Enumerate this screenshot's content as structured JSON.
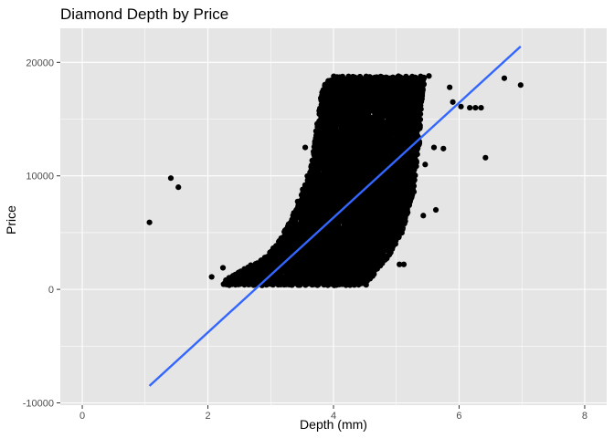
{
  "chart_data": {
    "type": "scatter",
    "title": "Diamond Depth by Price",
    "xlabel": "Depth (mm)",
    "ylabel": "Price",
    "xlim": [
      -0.35,
      8.35
    ],
    "ylim": [
      -10200,
      23000
    ],
    "x_ticks": [
      0,
      2,
      4,
      6,
      8
    ],
    "y_ticks": [
      -10000,
      0,
      10000,
      20000
    ],
    "x_tick_labels": [
      "0",
      "2",
      "4",
      "6",
      "8"
    ],
    "y_tick_labels": [
      "-10000",
      "0",
      "10000",
      "20000"
    ],
    "grid": true,
    "panel_background": "#e5e5e5",
    "grid_color": "#ffffff",
    "point_color": "#000000",
    "trend_color": "#3366ff",
    "trend_line": {
      "x": [
        1.07,
        6.98
      ],
      "y": [
        -8500,
        21400
      ]
    },
    "outlier_points": [
      {
        "x": 1.07,
        "y": 5900
      },
      {
        "x": 1.41,
        "y": 9800
      },
      {
        "x": 1.53,
        "y": 9000
      },
      {
        "x": 2.06,
        "y": 1100
      },
      {
        "x": 2.24,
        "y": 1900
      },
      {
        "x": 5.12,
        "y": 2200
      },
      {
        "x": 5.05,
        "y": 2200
      },
      {
        "x": 5.52,
        "y": 18800
      },
      {
        "x": 5.6,
        "y": 12500
      },
      {
        "x": 5.85,
        "y": 17800
      },
      {
        "x": 5.9,
        "y": 16500
      },
      {
        "x": 6.03,
        "y": 16100
      },
      {
        "x": 6.17,
        "y": 16000
      },
      {
        "x": 6.26,
        "y": 16000
      },
      {
        "x": 6.35,
        "y": 16000
      },
      {
        "x": 6.42,
        "y": 11600
      },
      {
        "x": 6.72,
        "y": 18600
      },
      {
        "x": 6.98,
        "y": 18000
      },
      {
        "x": 5.46,
        "y": 11000
      },
      {
        "x": 5.75,
        "y": 12400
      },
      {
        "x": 4.52,
        "y": 400
      },
      {
        "x": 4.38,
        "y": 1000
      },
      {
        "x": 2.35,
        "y": 700
      },
      {
        "x": 2.4,
        "y": 1200
      },
      {
        "x": 3.92,
        "y": 7600
      },
      {
        "x": 4.47,
        "y": 15000
      },
      {
        "x": 4.27,
        "y": 14400
      },
      {
        "x": 3.55,
        "y": 12500
      },
      {
        "x": 5.28,
        "y": 8600
      },
      {
        "x": 5.43,
        "y": 6500
      },
      {
        "x": 5.63,
        "y": 7000
      }
    ],
    "dense_band": [
      {
        "y": 400,
        "x_min": 2.25,
        "x_max": 4.45
      },
      {
        "y": 1000,
        "x_min": 2.3,
        "x_max": 4.6
      },
      {
        "y": 2000,
        "x_min": 2.65,
        "x_max": 4.75
      },
      {
        "y": 3000,
        "x_min": 2.95,
        "x_max": 4.9
      },
      {
        "y": 4000,
        "x_min": 3.1,
        "x_max": 5.0
      },
      {
        "y": 5000,
        "x_min": 3.2,
        "x_max": 5.1
      },
      {
        "y": 6000,
        "x_min": 3.3,
        "x_max": 5.15
      },
      {
        "y": 7000,
        "x_min": 3.38,
        "x_max": 5.2
      },
      {
        "y": 8000,
        "x_min": 3.45,
        "x_max": 5.25
      },
      {
        "y": 9000,
        "x_min": 3.52,
        "x_max": 5.3
      },
      {
        "y": 10000,
        "x_min": 3.58,
        "x_max": 5.32
      },
      {
        "y": 11000,
        "x_min": 3.63,
        "x_max": 5.35
      },
      {
        "y": 12000,
        "x_min": 3.67,
        "x_max": 5.35
      },
      {
        "y": 13000,
        "x_min": 3.7,
        "x_max": 5.38
      },
      {
        "y": 14000,
        "x_min": 3.72,
        "x_max": 5.38
      },
      {
        "y": 15000,
        "x_min": 3.75,
        "x_max": 5.4
      },
      {
        "y": 16000,
        "x_min": 3.78,
        "x_max": 5.4
      },
      {
        "y": 17000,
        "x_min": 3.8,
        "x_max": 5.42
      },
      {
        "y": 18000,
        "x_min": 3.85,
        "x_max": 5.45
      },
      {
        "y": 18800,
        "x_min": 4.0,
        "x_max": 5.48
      }
    ]
  }
}
